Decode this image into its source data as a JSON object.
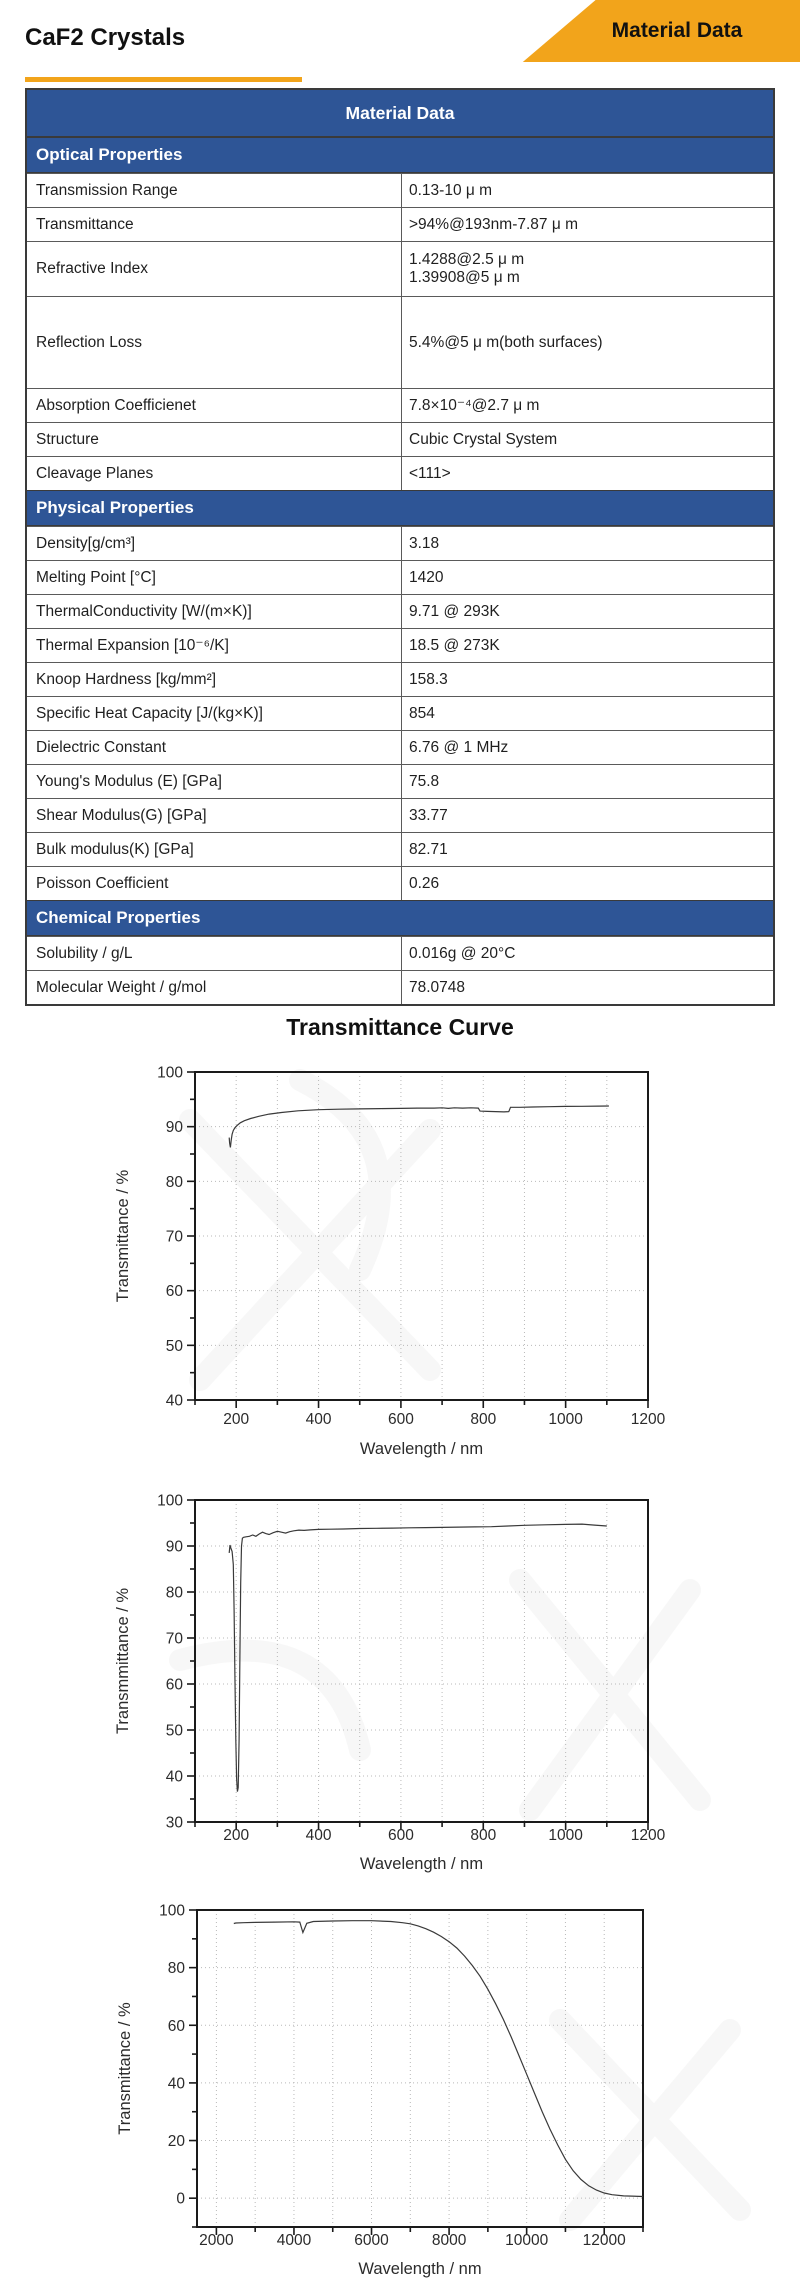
{
  "header": {
    "title": "CaF2 Crystals",
    "banner": "Material Data"
  },
  "colors": {
    "accent_orange": "#F2A41B",
    "accent_blue": "#2E5596"
  },
  "table": {
    "header": "Material Data",
    "sections": [
      {
        "title": "Optical Properties",
        "rows": [
          {
            "label": "Transmission Range",
            "value": "0.13-10 μ m"
          },
          {
            "label": "Transmittance",
            "value": ">94%@193nm-7.87 μ m"
          },
          {
            "label": "Refractive Index",
            "value": "1.4288@2.5 μ m\n1.39908@5 μ m"
          },
          {
            "label": "Reflection Loss",
            "value": "5.4%@5 μ m(both surfaces)"
          },
          {
            "label": "Absorption Coefficienet",
            "value": "7.8×10⁻⁴@2.7 μ m"
          },
          {
            "label": "Structure",
            "value": "Cubic Crystal System"
          },
          {
            "label": "Cleavage Planes",
            "value": "<111>"
          }
        ]
      },
      {
        "title": "Physical Properties",
        "rows": [
          {
            "label": "Density[g/cm³]",
            "value": "3.18"
          },
          {
            "label": "Melting Point [°C]",
            "value": "1420"
          },
          {
            "label": "ThermalConductivity [W/(m×K)]",
            "value": "9.71 @ 293K"
          },
          {
            "label": "Thermal Expansion [10⁻⁶/K]",
            "value": "18.5 @ 273K"
          },
          {
            "label": "Knoop Hardness [kg/mm²]",
            "value": "158.3"
          },
          {
            "label": "Specific Heat Capacity [J/(kg×K)]",
            "value": "854"
          },
          {
            "label": "Dielectric Constant",
            "value": "6.76 @ 1 MHz"
          },
          {
            "label": "Young's Modulus (E) [GPa]",
            "value": "75.8"
          },
          {
            "label": "Shear Modulus(G) [GPa]",
            "value": "33.77"
          },
          {
            "label": "Bulk modulus(K) [GPa]",
            "value": "82.71"
          },
          {
            "label": "Poisson Coefficient",
            "value": "0.26"
          }
        ]
      },
      {
        "title": "Chemical Properties",
        "rows": [
          {
            "label": "Solubility / g/L",
            "value": "0.016g @ 20°C"
          },
          {
            "label": "Molecular Weight / g/mol",
            "value": "78.0748"
          }
        ]
      }
    ]
  },
  "charts_title": "Transmittance Curve",
  "chart_data": [
    {
      "type": "line",
      "title": "",
      "xlabel": "Wavelength / nm",
      "ylabel": "Transmittance / %",
      "xlim": [
        100,
        1200
      ],
      "ylim": [
        40,
        100
      ],
      "xtick_major": 200,
      "xtick_minor": 100,
      "ytick_major": 10,
      "ytick_minor": 5,
      "grid": "dotted",
      "legend": "none",
      "points": [
        [
          183,
          88.0
        ],
        [
          184,
          87.0
        ],
        [
          186,
          86.2
        ],
        [
          188,
          87.5
        ],
        [
          190,
          88.6
        ],
        [
          193,
          89.3
        ],
        [
          197,
          89.8
        ],
        [
          202,
          90.2
        ],
        [
          210,
          90.7
        ],
        [
          220,
          91.1
        ],
        [
          235,
          91.5
        ],
        [
          255,
          91.9
        ],
        [
          280,
          92.3
        ],
        [
          310,
          92.6
        ],
        [
          350,
          92.9
        ],
        [
          400,
          93.1
        ],
        [
          450,
          93.2
        ],
        [
          500,
          93.25
        ],
        [
          550,
          93.3
        ],
        [
          600,
          93.35
        ],
        [
          640,
          93.4
        ],
        [
          680,
          93.4
        ],
        [
          700,
          93.45
        ],
        [
          715,
          93.35
        ],
        [
          730,
          93.45
        ],
        [
          750,
          93.4
        ],
        [
          770,
          93.45
        ],
        [
          788,
          93.4
        ],
        [
          792,
          92.85
        ],
        [
          810,
          92.8
        ],
        [
          830,
          92.75
        ],
        [
          850,
          92.7
        ],
        [
          862,
          92.75
        ],
        [
          866,
          93.55
        ],
        [
          890,
          93.55
        ],
        [
          920,
          93.6
        ],
        [
          960,
          93.65
        ],
        [
          1000,
          93.7
        ],
        [
          1040,
          93.72
        ],
        [
          1080,
          93.76
        ],
        [
          1105,
          93.78
        ]
      ]
    },
    {
      "type": "line",
      "title": "",
      "xlabel": "Wavelength / nm",
      "ylabel": "Transmmittance / %",
      "xlim": [
        100,
        1200
      ],
      "ylim": [
        30,
        100
      ],
      "xtick_major": 200,
      "xtick_minor": 100,
      "ytick_major": 10,
      "ytick_minor": 5,
      "grid": "dotted",
      "legend": "none",
      "points": [
        [
          183,
          88.5
        ],
        [
          185,
          90.2
        ],
        [
          187,
          89.6
        ],
        [
          190,
          88.8
        ],
        [
          193,
          86.0
        ],
        [
          195,
          76.0
        ],
        [
          197,
          62.0
        ],
        [
          199,
          48.0
        ],
        [
          201,
          39.5
        ],
        [
          203,
          36.6
        ],
        [
          205,
          37.5
        ],
        [
          207,
          48.0
        ],
        [
          209,
          66.0
        ],
        [
          211,
          82.0
        ],
        [
          213,
          90.0
        ],
        [
          215,
          91.7
        ],
        [
          218,
          91.9
        ],
        [
          224,
          92.0
        ],
        [
          232,
          92.1
        ],
        [
          240,
          92.4
        ],
        [
          248,
          92.1
        ],
        [
          256,
          92.6
        ],
        [
          264,
          93.0
        ],
        [
          272,
          92.7
        ],
        [
          280,
          92.5
        ],
        [
          290,
          92.9
        ],
        [
          300,
          93.2
        ],
        [
          310,
          93.0
        ],
        [
          320,
          92.8
        ],
        [
          330,
          93.1
        ],
        [
          340,
          93.3
        ],
        [
          352,
          93.45
        ],
        [
          365,
          93.4
        ],
        [
          380,
          93.5
        ],
        [
          400,
          93.6
        ],
        [
          430,
          93.65
        ],
        [
          460,
          93.7
        ],
        [
          500,
          93.8
        ],
        [
          540,
          93.85
        ],
        [
          580,
          93.9
        ],
        [
          620,
          93.95
        ],
        [
          660,
          94.0
        ],
        [
          700,
          94.05
        ],
        [
          740,
          94.1
        ],
        [
          780,
          94.15
        ],
        [
          820,
          94.2
        ],
        [
          860,
          94.35
        ],
        [
          900,
          94.5
        ],
        [
          950,
          94.6
        ],
        [
          1000,
          94.7
        ],
        [
          1040,
          94.75
        ],
        [
          1070,
          94.55
        ],
        [
          1100,
          94.35
        ]
      ]
    },
    {
      "type": "line",
      "title": "",
      "xlabel": "Wavelength / nm",
      "ylabel": "Transmittance / %",
      "xlim": [
        1500,
        13000
      ],
      "ylim": [
        -10,
        100
      ],
      "xtick_major": 2000,
      "xtick_minor": 1000,
      "ytick_major": 20,
      "ytick_minor": 10,
      "grid": "dotted",
      "legend": "none",
      "points": [
        [
          2450,
          95.3
        ],
        [
          2500,
          95.5
        ],
        [
          2700,
          95.6
        ],
        [
          3000,
          95.7
        ],
        [
          3500,
          95.8
        ],
        [
          4000,
          95.9
        ],
        [
          4150,
          95.8
        ],
        [
          4230,
          92.2
        ],
        [
          4330,
          95.4
        ],
        [
          4500,
          96.0
        ],
        [
          5000,
          96.2
        ],
        [
          5500,
          96.3
        ],
        [
          6000,
          96.3
        ],
        [
          6500,
          96.0
        ],
        [
          6800,
          95.6
        ],
        [
          7000,
          95.2
        ],
        [
          7200,
          94.5
        ],
        [
          7400,
          93.5
        ],
        [
          7600,
          92.3
        ],
        [
          7800,
          90.8
        ],
        [
          8000,
          89.0
        ],
        [
          8200,
          86.8
        ],
        [
          8400,
          84.0
        ],
        [
          8600,
          80.7
        ],
        [
          8800,
          77.0
        ],
        [
          9000,
          72.5
        ],
        [
          9200,
          67.5
        ],
        [
          9400,
          62.0
        ],
        [
          9600,
          56.0
        ],
        [
          9800,
          49.5
        ],
        [
          10000,
          43.0
        ],
        [
          10200,
          36.5
        ],
        [
          10400,
          30.0
        ],
        [
          10600,
          24.0
        ],
        [
          10800,
          18.5
        ],
        [
          11000,
          13.5
        ],
        [
          11200,
          9.5
        ],
        [
          11400,
          6.5
        ],
        [
          11600,
          4.3
        ],
        [
          11800,
          2.8
        ],
        [
          12000,
          1.8
        ],
        [
          12200,
          1.2
        ],
        [
          12500,
          0.8
        ],
        [
          13000,
          0.6
        ]
      ]
    }
  ]
}
